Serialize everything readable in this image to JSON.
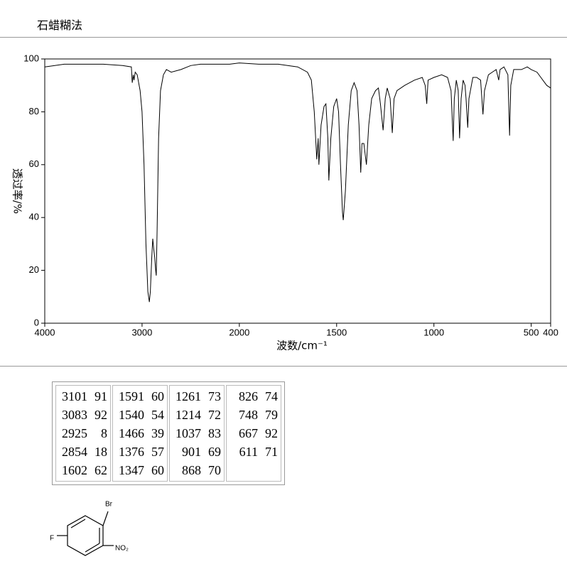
{
  "header": {
    "title": "石蜡糊法"
  },
  "chart_data": {
    "type": "line",
    "xlabel": "波数/cm⁻¹",
    "ylabel": "透过率/%",
    "xlim": [
      4000,
      400
    ],
    "x_break": 2000,
    "x_break_factor": 2,
    "xticks": [
      4000,
      3000,
      2000,
      1500,
      1000,
      500,
      400
    ],
    "ylim": [
      0,
      100
    ],
    "yticks": [
      0,
      20,
      40,
      60,
      80,
      100
    ],
    "x": [
      4000,
      3800,
      3600,
      3400,
      3200,
      3110,
      3101,
      3090,
      3083,
      3070,
      3050,
      3020,
      3000,
      2980,
      2960,
      2940,
      2925,
      2915,
      2900,
      2890,
      2880,
      2870,
      2860,
      2854,
      2845,
      2830,
      2810,
      2780,
      2750,
      2700,
      2600,
      2500,
      2400,
      2300,
      2200,
      2100,
      2000,
      1900,
      1800,
      1700,
      1650,
      1630,
      1615,
      1602,
      1595,
      1591,
      1580,
      1565,
      1555,
      1545,
      1540,
      1530,
      1515,
      1500,
      1490,
      1480,
      1470,
      1466,
      1455,
      1440,
      1425,
      1410,
      1395,
      1385,
      1376,
      1370,
      1360,
      1350,
      1347,
      1335,
      1320,
      1300,
      1285,
      1275,
      1261,
      1250,
      1240,
      1225,
      1214,
      1205,
      1190,
      1150,
      1100,
      1060,
      1045,
      1037,
      1030,
      1000,
      960,
      930,
      912,
      901,
      895,
      885,
      875,
      868,
      860,
      850,
      840,
      835,
      826,
      820,
      800,
      780,
      760,
      748,
      740,
      720,
      700,
      680,
      667,
      660,
      640,
      620,
      611,
      605,
      590,
      550,
      520,
      500,
      470,
      440,
      420,
      400
    ],
    "series": [
      {
        "color": "#000000",
        "values": [
          97,
          98,
          98,
          98,
          97.5,
          97,
          91,
          94,
          92,
          95,
          94,
          88,
          80,
          60,
          30,
          12,
          8,
          12,
          25,
          32,
          28,
          25,
          20,
          18,
          35,
          70,
          88,
          94,
          96,
          95,
          96,
          97.5,
          98,
          98,
          98,
          98,
          98.5,
          98,
          98,
          97,
          95,
          92,
          80,
          62,
          70,
          60,
          75,
          82,
          83,
          70,
          54,
          70,
          82,
          85,
          80,
          60,
          42,
          39,
          50,
          75,
          88,
          91,
          88,
          75,
          57,
          68,
          68,
          62,
          60,
          75,
          85,
          88,
          89,
          83,
          73,
          85,
          89,
          85,
          72,
          85,
          88,
          90,
          92,
          93,
          90,
          83,
          92,
          93,
          94,
          93,
          88,
          69,
          85,
          92,
          88,
          70,
          85,
          92,
          90,
          85,
          74,
          85,
          93,
          93,
          92,
          79,
          88,
          94,
          95,
          96,
          92,
          96,
          97,
          94,
          71,
          90,
          96,
          96,
          97,
          96,
          95,
          92,
          90,
          89
        ]
      }
    ]
  },
  "table": {
    "columns": [
      [
        [
          3101,
          91
        ],
        [
          3083,
          92
        ],
        [
          2925,
          8
        ],
        [
          2854,
          18
        ],
        [
          1602,
          62
        ]
      ],
      [
        [
          1591,
          60
        ],
        [
          1540,
          54
        ],
        [
          1466,
          39
        ],
        [
          1376,
          57
        ],
        [
          1347,
          60
        ]
      ],
      [
        [
          1261,
          73
        ],
        [
          1214,
          72
        ],
        [
          1037,
          83
        ],
        [
          901,
          69
        ],
        [
          868,
          70
        ]
      ],
      [
        [
          826,
          74
        ],
        [
          748,
          79
        ],
        [
          667,
          92
        ],
        [
          611,
          71
        ]
      ]
    ]
  },
  "structure": {
    "labels": [
      "Br",
      "F",
      "NO₂"
    ]
  }
}
